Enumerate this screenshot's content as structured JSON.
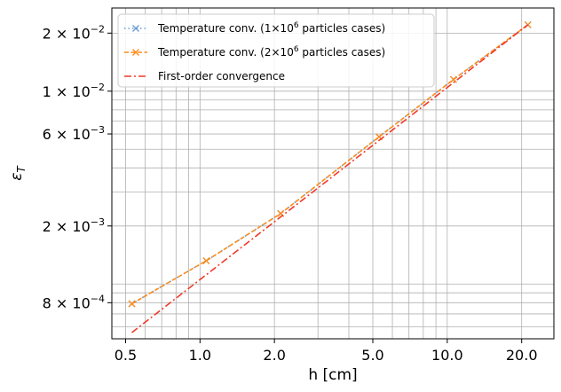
{
  "chart_data": {
    "type": "line",
    "xscale": "log",
    "yscale": "log",
    "xlabel": "h [cm]",
    "ylabel": "ε_T",
    "xlim": [
      0.44,
      27
    ],
    "ylim": [
      0.00052,
      0.027
    ],
    "grid": true,
    "legend_position": "top-left",
    "x_ticks": [
      {
        "value": 0.5,
        "label": "0.5"
      },
      {
        "value": 1.0,
        "label": "1.0"
      },
      {
        "value": 2.0,
        "label": "2.0"
      },
      {
        "value": 5.0,
        "label": "5.0"
      },
      {
        "value": 10.0,
        "label": "10.0"
      },
      {
        "value": 20.0,
        "label": "20.0"
      }
    ],
    "y_ticks": [
      {
        "value": 0.0008,
        "mantissa": "8",
        "exponent": "−4"
      },
      {
        "value": 0.002,
        "mantissa": "2",
        "exponent": "−3"
      },
      {
        "value": 0.006,
        "mantissa": "6",
        "exponent": "−3"
      },
      {
        "value": 0.01,
        "mantissa": "1",
        "exponent": "−2"
      },
      {
        "value": 0.02,
        "mantissa": "2",
        "exponent": "−2"
      }
    ],
    "series": [
      {
        "name": "Temperature conv. (1×10⁶ particles cases)",
        "legend_pre": "Temperature conv. (1",
        "legend_base": "×10",
        "legend_sup": "6",
        "legend_post": " particles cases)",
        "color": "#6b9bd1",
        "linestyle": "dotted",
        "marker": "x",
        "x": [
          0.53,
          1.06,
          2.12,
          5.3,
          10.6,
          21.2
        ],
        "y": [
          0.00079,
          0.00132,
          0.00232,
          0.0058,
          0.0115,
          0.0221
        ]
      },
      {
        "name": "Temperature conv. (2×10⁶ particles cases)",
        "legend_pre": "Temperature conv. (2",
        "legend_base": "×10",
        "legend_sup": "6",
        "legend_post": " particles cases)",
        "color": "#ff8c1a",
        "linestyle": "dashed",
        "marker": "x",
        "x": [
          0.53,
          1.06,
          2.12,
          5.3,
          10.6,
          21.2
        ],
        "y": [
          0.00079,
          0.00132,
          0.00232,
          0.0058,
          0.0115,
          0.0221
        ]
      },
      {
        "name": "First-order convergence",
        "legend_pre": "First-order convergence",
        "color": "#f03a2a",
        "linestyle": "dashdot",
        "marker": "none",
        "x": [
          0.53,
          21.2
        ],
        "y": [
          0.00056,
          0.0221
        ]
      }
    ]
  }
}
